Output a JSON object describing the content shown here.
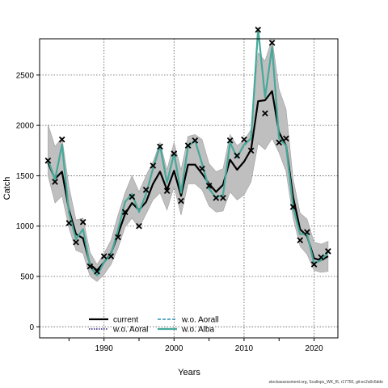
{
  "chart_data": {
    "type": "line",
    "xlabel": "Years",
    "ylabel": "Catch",
    "xlim": [
      1980.8,
      2023.4
    ],
    "ylim": [
      -110,
      2860
    ],
    "x_ticks": [
      1990,
      2000,
      2010,
      2020
    ],
    "y_ticks": [
      0,
      500,
      1000,
      1500,
      2000,
      2500
    ],
    "grid": true,
    "legend_position": "bottom-left",
    "years": [
      1982,
      1983,
      1984,
      1985,
      1986,
      1987,
      1988,
      1989,
      1990,
      1991,
      1992,
      1993,
      1994,
      1995,
      1996,
      1997,
      1998,
      1999,
      2000,
      2001,
      2002,
      2003,
      2004,
      2005,
      2006,
      2007,
      2008,
      2009,
      2010,
      2011,
      2012,
      2013,
      2014,
      2015,
      2016,
      2017,
      2018,
      2019,
      2020,
      2021,
      2022
    ],
    "band": {
      "lower": [
        1500,
        1230,
        1300,
        980,
        760,
        730,
        500,
        450,
        520,
        620,
        780,
        990,
        1080,
        980,
        1120,
        1260,
        1330,
        1160,
        1390,
        1110,
        1420,
        1420,
        1360,
        1200,
        1140,
        1150,
        1340,
        1260,
        1310,
        1440,
        1820,
        1760,
        1870,
        1730,
        1540,
        1080,
        800,
        720,
        560,
        540,
        550
      ],
      "upper": [
        2010,
        1790,
        1880,
        1390,
        1060,
        1080,
        740,
        620,
        730,
        860,
        1110,
        1330,
        1500,
        1340,
        1500,
        1640,
        1830,
        1560,
        1830,
        1560,
        1890,
        1910,
        1860,
        1620,
        1540,
        1570,
        1910,
        1800,
        1850,
        1960,
        2720,
        2640,
        2860,
        2360,
        2160,
        1470,
        1130,
        1070,
        840,
        820,
        850
      ]
    },
    "series": [
      {
        "name": "current",
        "values": [
          1630,
          1470,
          1540,
          1160,
          920,
          880,
          620,
          560,
          640,
          730,
          920,
          1120,
          1230,
          1160,
          1240,
          1420,
          1540,
          1360,
          1550,
          1300,
          1610,
          1610,
          1520,
          1420,
          1340,
          1410,
          1660,
          1560,
          1640,
          1760,
          2240,
          2250,
          2340,
          1930,
          1800,
          1290,
          970,
          900,
          680,
          660,
          700
        ]
      },
      {
        "name": "w.o. Aoral",
        "values": [
          1660,
          1460,
          1810,
          1130,
          870,
          970,
          600,
          510,
          640,
          720,
          960,
          1240,
          1320,
          1140,
          1320,
          1570,
          1800,
          1430,
          1720,
          1330,
          1790,
          1850,
          1620,
          1370,
          1280,
          1310,
          1830,
          1680,
          1810,
          1870,
          2960,
          2280,
          2780,
          1870,
          1800,
          1190,
          920,
          920,
          630,
          660,
          740
        ]
      },
      {
        "name": "w.o. Aorall",
        "values": [
          1660,
          1470,
          1810,
          1130,
          870,
          970,
          600,
          510,
          640,
          720,
          960,
          1240,
          1320,
          1140,
          1320,
          1570,
          1790,
          1430,
          1720,
          1330,
          1790,
          1850,
          1620,
          1380,
          1280,
          1310,
          1830,
          1680,
          1800,
          1870,
          2950,
          2280,
          2770,
          1870,
          1800,
          1190,
          920,
          920,
          640,
          660,
          740
        ]
      },
      {
        "name": "w.o. Alba",
        "values": [
          1660,
          1460,
          1810,
          1130,
          870,
          970,
          600,
          510,
          640,
          720,
          960,
          1240,
          1320,
          1140,
          1320,
          1570,
          1800,
          1430,
          1720,
          1330,
          1790,
          1850,
          1620,
          1370,
          1280,
          1310,
          1830,
          1680,
          1810,
          1870,
          2960,
          2280,
          2780,
          1870,
          1800,
          1190,
          920,
          920,
          630,
          660,
          740
        ]
      }
    ],
    "observations": {
      "x": [
        1982,
        1983,
        1984,
        1985,
        1986,
        1987,
        1988,
        1989,
        1990,
        1991,
        1992,
        1993,
        1994,
        1995,
        1996,
        1997,
        1998,
        1999,
        2000,
        2001,
        2002,
        2003,
        2004,
        2005,
        2006,
        2007,
        2008,
        2009,
        2010,
        2011,
        2012,
        2013,
        2014,
        2015,
        2016,
        2017,
        2018,
        2019,
        2020,
        2021,
        2022
      ],
      "y": [
        1650,
        1440,
        1860,
        1030,
        840,
        1040,
        600,
        550,
        700,
        700,
        890,
        1140,
        1290,
        1000,
        1360,
        1600,
        1790,
        1350,
        1720,
        1250,
        1800,
        1850,
        1570,
        1400,
        1280,
        1280,
        1850,
        1700,
        1860,
        1750,
        2950,
        2120,
        2820,
        1830,
        1870,
        1190,
        860,
        940,
        620,
        690,
        750
      ]
    },
    "colors": {
      "current": "#000000",
      "w.o. Aoral": "#2b1d7a",
      "w.o. Aorall": "#2a8fb8",
      "w.o. Alba": "#46a99a",
      "band": "#bfbfbf",
      "band_edge": "#9e9e9e"
    }
  },
  "footer_text": "stockassessment.org, Scallops_WK_f6, r17750, git:ec2a0c6dde"
}
